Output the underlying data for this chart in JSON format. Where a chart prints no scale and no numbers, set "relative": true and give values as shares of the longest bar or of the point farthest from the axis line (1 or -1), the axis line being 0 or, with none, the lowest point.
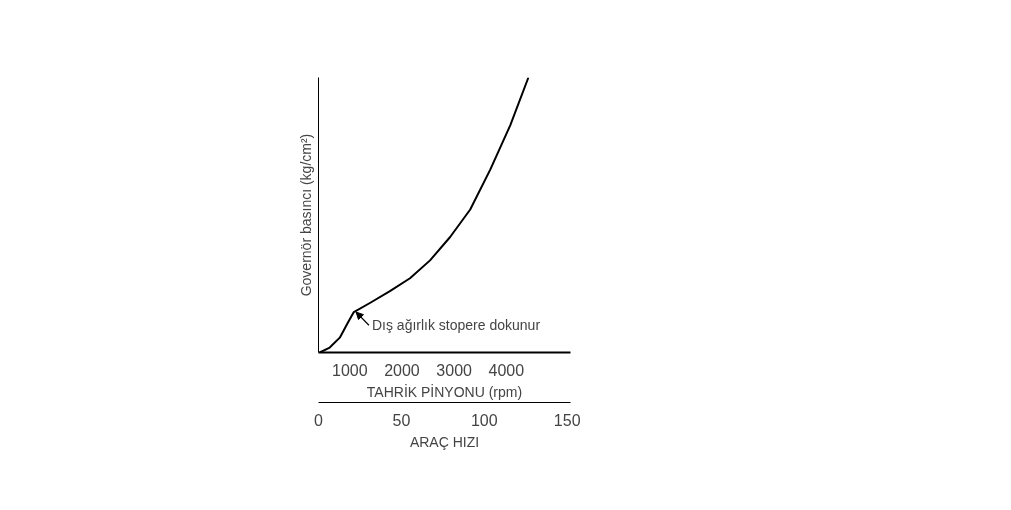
{
  "chart_data": {
    "type": "line",
    "relative": true,
    "xlabel": "TAHRİK PİNYONU (rpm)",
    "ylabel": "Governör basıncı (kg/cm²)",
    "x": [
      423,
      615,
      808,
      962,
      1077,
      1385,
      1769,
      2154,
      2538,
      2923,
      3308,
      3692,
      4077,
      4423
    ],
    "series": [
      {
        "color": "#000000",
        "values": [
          0,
          0.018,
          0.054,
          0.108,
          0.147,
          0.18,
          0.223,
          0.27,
          0.335,
          0.42,
          0.52,
          0.665,
          0.827,
          1.0
        ]
      }
    ],
    "xlim": [
      400,
      5230
    ],
    "xticks": [
      1000,
      2000,
      3000,
      4000
    ],
    "x2lim": [
      0,
      152
    ],
    "x2ticks": [
      0,
      50,
      100,
      150
    ],
    "x2label": "ARAÇ HIZI",
    "annotations": [
      {
        "text": "Dış ağırlık stopere dokunur",
        "x": 1077,
        "y": 0.147
      }
    ],
    "grid": false,
    "marker": "none",
    "line_style": "solid"
  }
}
